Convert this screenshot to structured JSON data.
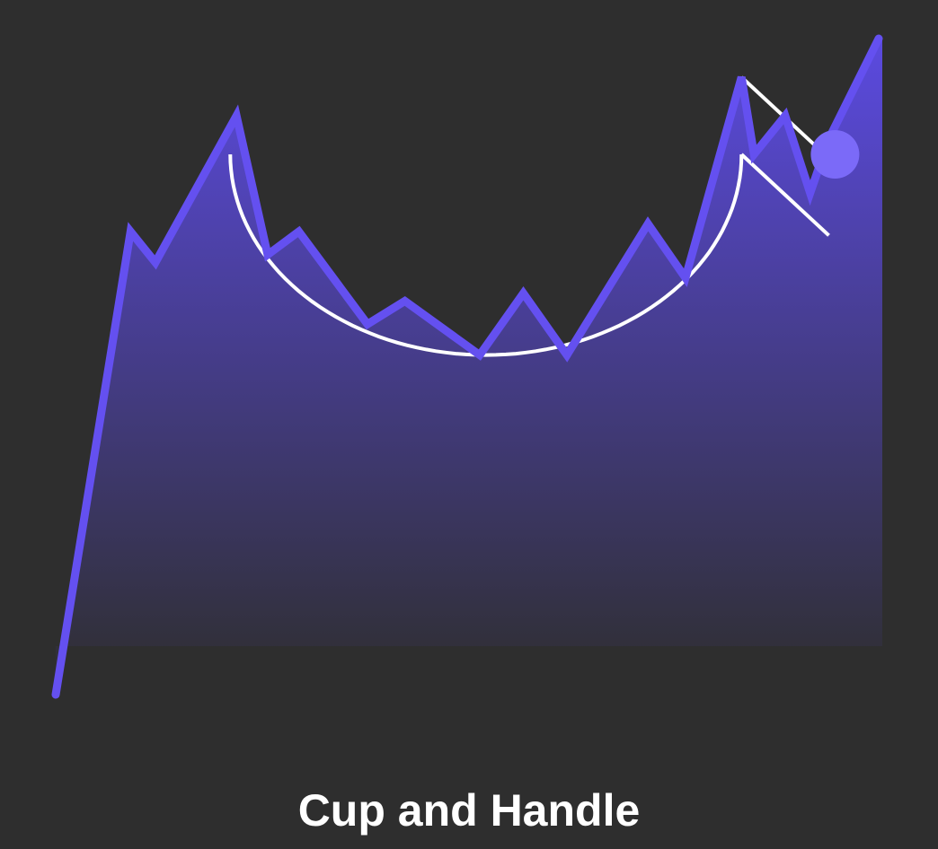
{
  "chart_data": {
    "type": "line",
    "title": "Cup and Handle",
    "grid": false,
    "legend": "none",
    "x": [
      0,
      6,
      8,
      14.5,
      17,
      19.5,
      25,
      28,
      34,
      37.5,
      41,
      47.5,
      50.5,
      55,
      56,
      58.5,
      60.5,
      62,
      66
    ],
    "series": [
      {
        "values": [
          10,
          70,
          66,
          85,
          67,
          70,
          58,
          61,
          54,
          62,
          54,
          71,
          64,
          90,
          80,
          85,
          75,
          82,
          95
        ]
      }
    ],
    "annotations": {
      "cup_curve": {
        "x_start": 14,
        "x_end": 55,
        "rim_y": 80,
        "bottom_y": 54
      },
      "handle_channel": {
        "upper": [
          [
            55,
            90
          ],
          [
            63,
            78
          ]
        ],
        "lower": [
          [
            55,
            80
          ],
          [
            62,
            69.5
          ]
        ]
      },
      "breakout_point": {
        "x": 62.5,
        "y": 80
      }
    },
    "colors": {
      "line": "#6450f0",
      "fill_top": "#5b4ae0",
      "fill_bottom": "#2e2e2e",
      "annotation": "#ffffff",
      "marker": "#7b6af8",
      "background": "#2e2e2e"
    }
  }
}
